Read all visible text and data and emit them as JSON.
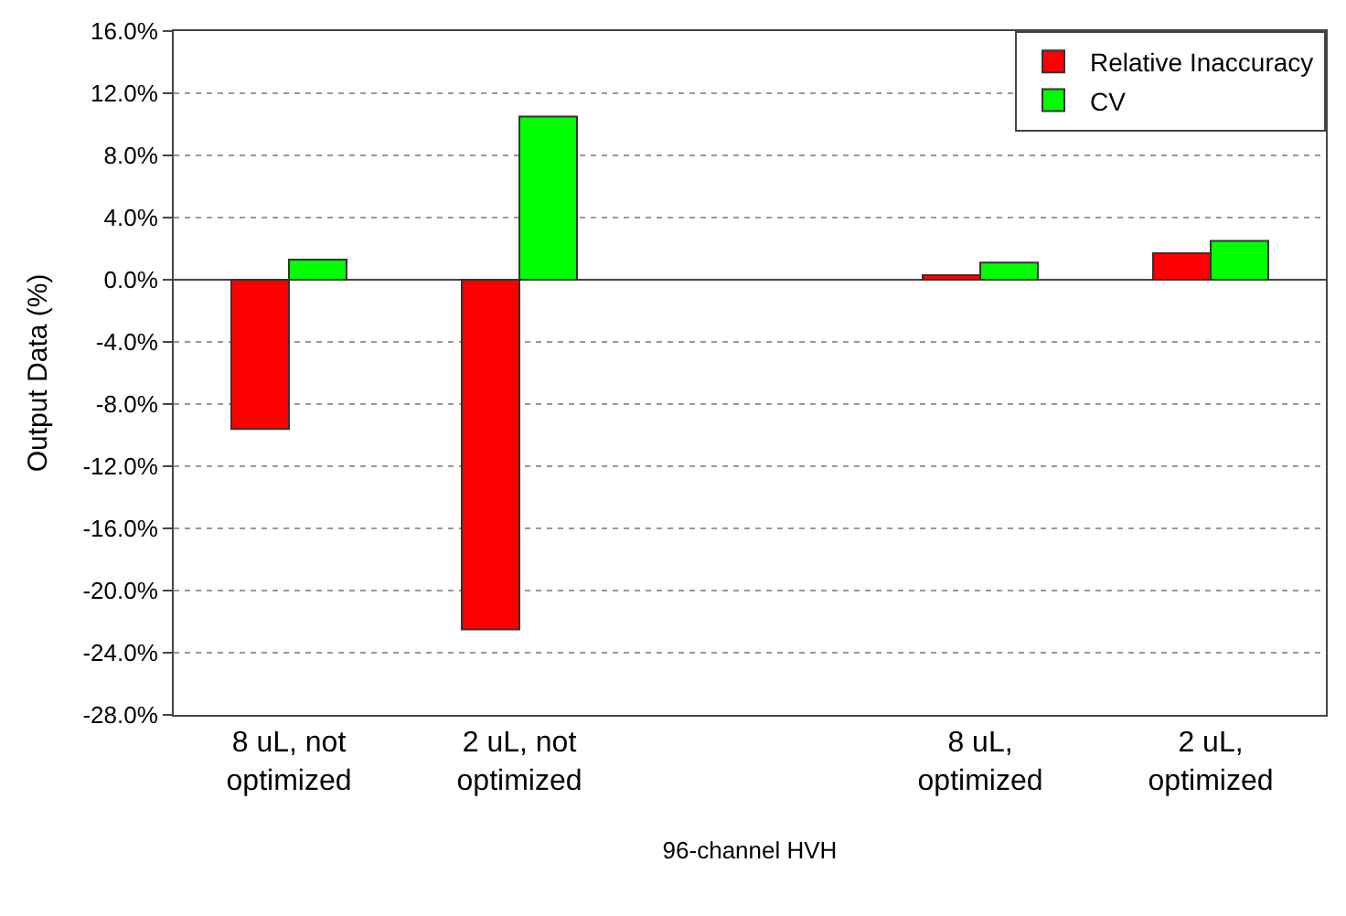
{
  "chart_data": {
    "type": "bar",
    "ylabel": "Output Data (%)",
    "xlabel": "96-channel HVH",
    "categories": [
      "8 uL, not\noptimized",
      "2 uL, not\noptimized",
      null,
      "8 uL,\noptimized",
      "2 uL,\noptimized"
    ],
    "series": [
      {
        "name": "Relative Inaccuracy",
        "color": "#ff0000",
        "values": [
          -9.6,
          -22.5,
          null,
          0.3,
          1.7
        ]
      },
      {
        "name": "CV",
        "color": "#00ff00",
        "values": [
          1.3,
          10.5,
          null,
          1.1,
          2.5
        ]
      }
    ],
    "ylim": [
      -28,
      16
    ],
    "yticks": [
      {
        "value": -28,
        "label": "-28.0%"
      },
      {
        "value": -24,
        "label": "-24.0%"
      },
      {
        "value": -20,
        "label": "-20.0%"
      },
      {
        "value": -16,
        "label": "-16.0%"
      },
      {
        "value": -12,
        "label": "-12.0%"
      },
      {
        "value": -8,
        "label": "-8.0%"
      },
      {
        "value": -4,
        "label": "-4.0%"
      },
      {
        "value": 0,
        "label": "0.0%"
      },
      {
        "value": 4,
        "label": "4.0%"
      },
      {
        "value": 8,
        "label": "8.0%"
      },
      {
        "value": 12,
        "label": "12.0%"
      },
      {
        "value": 16,
        "label": "16.0%"
      }
    ],
    "grid": "y",
    "legend": "top right"
  }
}
